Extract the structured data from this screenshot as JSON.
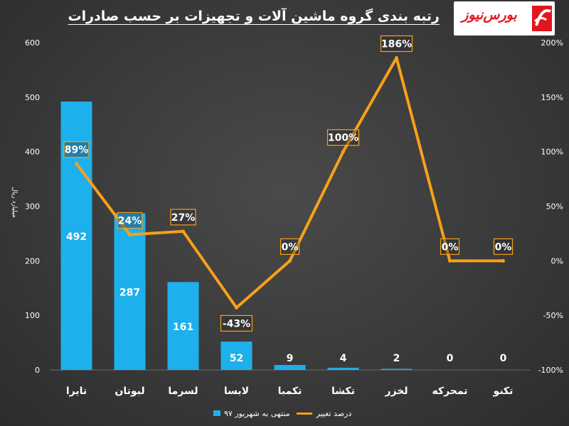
{
  "title": "رتبه بندی گروه ماشین آلات و تجهیزات بر حسب صادرات",
  "logo": {
    "text": "بورس‌نیوز",
    "accent": "#e2161e"
  },
  "colors": {
    "bar": "#1eb0ec",
    "line": "#f7a11a",
    "text": "#ffffff"
  },
  "chart_data": {
    "type": "bar",
    "categories": [
      "تایرا",
      "لبوتان",
      "لسرما",
      "لابسا",
      "تکمبا",
      "تکشا",
      "لخزر",
      "تمحرکه",
      "تکنو"
    ],
    "series": [
      {
        "name": "منتهی به شهریور ۹۷",
        "type": "bar",
        "axis": "left",
        "values": [
          492,
          287,
          161,
          52,
          9,
          4,
          2,
          0,
          0
        ]
      },
      {
        "name": "درصد تغییر",
        "type": "line",
        "axis": "right",
        "values": [
          89,
          24,
          27,
          -43,
          0,
          100,
          186,
          0,
          0
        ]
      }
    ],
    "bar_labels": [
      "492",
      "287",
      "161",
      "52",
      "9",
      "4",
      "2",
      "0",
      "0"
    ],
    "line_labels": [
      "89%",
      "24%",
      "27%",
      "-43%",
      "0%",
      "100%",
      "186%",
      "0%",
      "0%"
    ],
    "y_left": {
      "label": "میلیارد ریال",
      "ylim": [
        0,
        600
      ],
      "ticks": [
        "0",
        "100",
        "200",
        "300",
        "400",
        "500",
        "600"
      ]
    },
    "y_right": {
      "label": "",
      "ylim": [
        -100,
        200
      ],
      "ticks": [
        "-100%",
        "-50%",
        "0%",
        "50%",
        "100%",
        "150%",
        "200%"
      ]
    },
    "legend_position": "bottom",
    "grid": false
  }
}
